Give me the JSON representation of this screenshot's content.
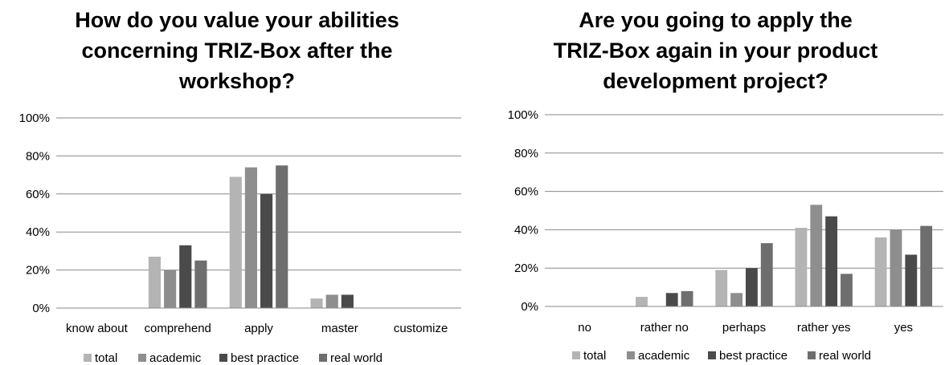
{
  "colors": {
    "total": "#b4b4b4",
    "academic": "#8e8e8e",
    "best_practice": "#4a4a4a",
    "real_world": "#6e6e6e",
    "grid": "#8a8a8a"
  },
  "chart_data": [
    {
      "type": "bar",
      "title_lines": [
        "How do you value your abilities",
        "concerning TRIZ-Box after the",
        "workshop?"
      ],
      "categories": [
        "know about",
        "comprehend",
        "apply",
        "master",
        "customize"
      ],
      "series": [
        {
          "name": "total",
          "values": [
            0,
            27,
            69,
            5,
            0
          ]
        },
        {
          "name": "academic",
          "values": [
            0,
            20,
            74,
            7,
            0
          ]
        },
        {
          "name": "best practice",
          "values": [
            0,
            33,
            60,
            7,
            0
          ]
        },
        {
          "name": "real world",
          "values": [
            0,
            25,
            75,
            0,
            0
          ]
        }
      ],
      "y_ticks": [
        "0%",
        "20%",
        "40%",
        "60%",
        "80%",
        "100%"
      ],
      "ylim": [
        0,
        100
      ],
      "grid": true,
      "legend": "bottom"
    },
    {
      "type": "bar",
      "title_lines": [
        "Are you going to apply the",
        "TRIZ-Box again in your product",
        "development project?"
      ],
      "categories": [
        "no",
        "rather no",
        "perhaps",
        "rather yes",
        "yes"
      ],
      "series": [
        {
          "name": "total",
          "values": [
            0,
            5,
            19,
            41,
            36
          ]
        },
        {
          "name": "academic",
          "values": [
            0,
            0,
            7,
            53,
            40
          ]
        },
        {
          "name": "best practice",
          "values": [
            0,
            7,
            20,
            47,
            27
          ]
        },
        {
          "name": "real world",
          "values": [
            0,
            8,
            33,
            17,
            42
          ]
        }
      ],
      "y_ticks": [
        "0%",
        "20%",
        "40%",
        "60%",
        "80%",
        "100%"
      ],
      "ylim": [
        0,
        100
      ],
      "grid": true,
      "legend": "bottom"
    }
  ]
}
